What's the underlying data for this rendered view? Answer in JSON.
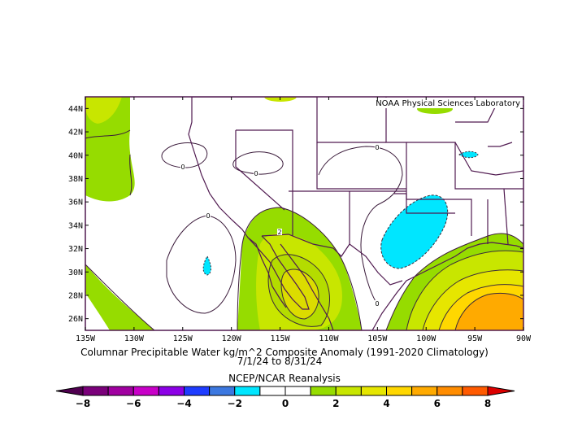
{
  "credit": "NOAA Physical Sciences Laboratory",
  "caption": {
    "line1": "Columnar Precipitable Water kg/m^2 Composite Anomaly (1991-2020 Climatology)",
    "line2": "7/1/24  to 8/31/24",
    "line3": "NCEP/NCAR Reanalysis"
  },
  "map": {
    "lon_range": [
      -135,
      -90
    ],
    "lat_range": [
      25,
      45
    ],
    "x_ticks": [
      "135W",
      "130W",
      "125W",
      "120W",
      "115W",
      "110W",
      "105W",
      "100W",
      "95W",
      "90W"
    ],
    "y_ticks": [
      "26N",
      "28N",
      "30N",
      "32N",
      "34N",
      "36N",
      "38N",
      "40N",
      "42N",
      "44N"
    ],
    "contour_labels": [
      "0",
      "0",
      "0",
      "0",
      "0",
      "2"
    ]
  },
  "colorbar": {
    "labels": [
      "-8",
      "-6",
      "-4",
      "-2",
      "0",
      "2",
      "4",
      "6",
      "8"
    ],
    "colors": [
      "#7a007a",
      "#a000a0",
      "#c800c8",
      "#8c00e6",
      "#1e3cff",
      "#3c78e0",
      "#00e6ff",
      "#ffffff",
      "#ffffff",
      "#96dc00",
      "#c8e600",
      "#e6e600",
      "#ffd700",
      "#ffaa00",
      "#ff8c00",
      "#ff5a00"
    ],
    "under_color": "#500050",
    "over_color": "#dc0000"
  }
}
